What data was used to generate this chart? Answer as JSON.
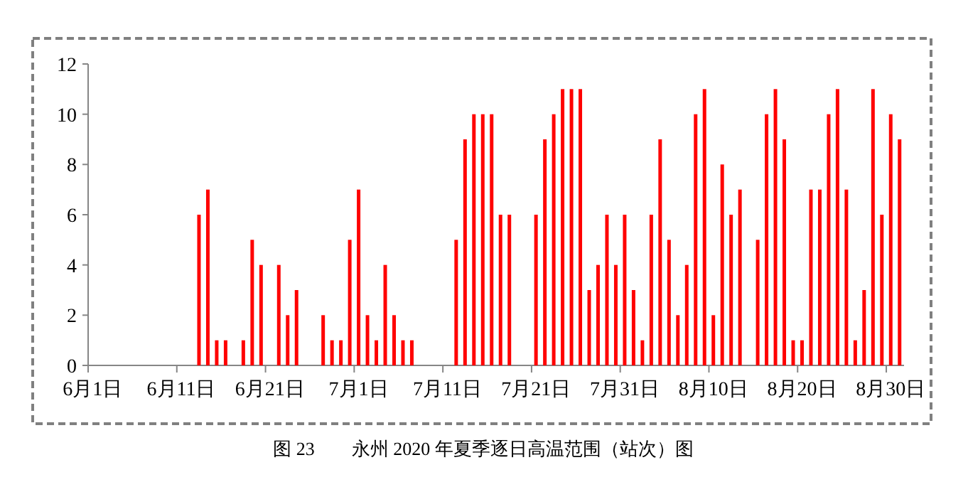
{
  "chart_data": {
    "type": "bar",
    "title": "图 23　　永州 2020 年夏季逐日高温范围（站次）图",
    "categories": [
      "6月1日",
      null,
      null,
      null,
      null,
      null,
      null,
      null,
      null,
      null,
      "6月11日",
      null,
      null,
      null,
      null,
      null,
      null,
      null,
      null,
      null,
      "6月21日",
      null,
      null,
      null,
      null,
      null,
      null,
      null,
      null,
      null,
      "7月1日",
      null,
      null,
      null,
      null,
      null,
      null,
      null,
      null,
      null,
      "7月11日",
      null,
      null,
      null,
      null,
      null,
      null,
      null,
      null,
      null,
      "7月21日",
      null,
      null,
      null,
      null,
      null,
      null,
      null,
      null,
      null,
      "7月31日",
      null,
      null,
      null,
      null,
      null,
      null,
      null,
      null,
      null,
      "8月10日",
      null,
      null,
      null,
      null,
      null,
      null,
      null,
      null,
      null,
      "8月20日",
      null,
      null,
      null,
      null,
      null,
      null,
      null,
      null,
      null,
      "8月30日",
      null
    ],
    "values": [
      0,
      0,
      0,
      0,
      0,
      0,
      0,
      0,
      0,
      0,
      0,
      0,
      6,
      7,
      1,
      1,
      0,
      1,
      5,
      4,
      0,
      4,
      2,
      3,
      0,
      0,
      2,
      1,
      1,
      5,
      7,
      2,
      1,
      4,
      2,
      1,
      1,
      0,
      0,
      0,
      0,
      5,
      9,
      10,
      10,
      10,
      6,
      6,
      0,
      0,
      6,
      9,
      10,
      11,
      11,
      11,
      3,
      4,
      6,
      4,
      6,
      3,
      1,
      6,
      9,
      5,
      2,
      4,
      10,
      11,
      2,
      8,
      6,
      7,
      0,
      5,
      10,
      11,
      9,
      1,
      1,
      7,
      7,
      10,
      11,
      7,
      1,
      3,
      11,
      6,
      10,
      9
    ],
    "color": "#ff0000",
    "ylim": [
      0,
      12
    ],
    "yticks": [
      0,
      2,
      4,
      6,
      8,
      10,
      12
    ],
    "grid": false
  }
}
